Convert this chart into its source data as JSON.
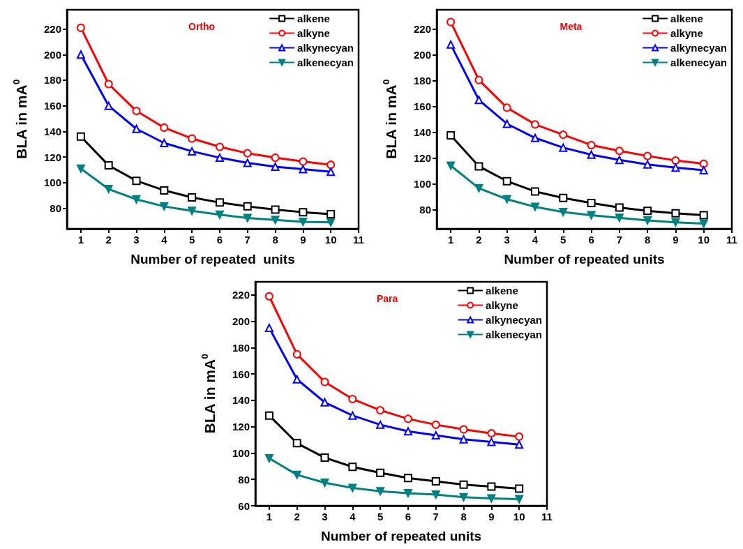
{
  "chart_data": [
    {
      "type": "line",
      "title": "Ortho",
      "xlabel": "Number of repeated  units",
      "ylabel": "BLA in mA$^{0}$",
      "x": [
        1,
        2,
        3,
        4,
        5,
        6,
        7,
        8,
        9,
        10
      ],
      "xlim": [
        0.5,
        11
      ],
      "xticks": [
        1,
        2,
        3,
        4,
        5,
        6,
        7,
        8,
        9,
        10,
        11
      ],
      "ylim": [
        64,
        235
      ],
      "yticks": [
        80,
        100,
        120,
        140,
        160,
        180,
        200,
        220
      ],
      "grid": false,
      "legend": "top right",
      "line_style": "solid",
      "series": [
        {
          "name": "alkene",
          "color": "#000000",
          "marker": "square",
          "values": [
            136,
            113.5,
            101.5,
            94,
            88.5,
            84.5,
            81.5,
            79,
            77,
            75.5
          ]
        },
        {
          "name": "alkyne",
          "color": "#ff0000",
          "marker": "circle",
          "values": [
            221,
            177,
            156,
            143,
            134.5,
            128,
            123,
            119.5,
            116.5,
            114
          ]
        },
        {
          "name": "alkynecyan",
          "color": "#0000ff",
          "marker": "triangle",
          "values": [
            200,
            160,
            142,
            131,
            124.5,
            119.5,
            115.5,
            112.5,
            110.5,
            108.5
          ]
        },
        {
          "name": "alkenecyan",
          "color": "#008080",
          "marker": "triangle-down",
          "values": [
            111,
            95,
            87,
            81.5,
            78,
            75,
            72.5,
            71,
            69.5,
            69
          ]
        }
      ]
    },
    {
      "type": "line",
      "title": "Meta",
      "xlabel": "Number of repeated units",
      "ylabel": "BLA in mA$^{0}$",
      "x": [
        1,
        2,
        3,
        4,
        5,
        6,
        7,
        8,
        9,
        10
      ],
      "xlim": [
        0.5,
        11
      ],
      "xticks": [
        1,
        2,
        3,
        4,
        5,
        6,
        7,
        8,
        9,
        10,
        11
      ],
      "ylim": [
        65,
        235
      ],
      "yticks": [
        80,
        100,
        120,
        140,
        160,
        180,
        200,
        220
      ],
      "grid": false,
      "legend": "top right",
      "line_style": "solid",
      "series": [
        {
          "name": "alkene",
          "color": "#000000",
          "marker": "square",
          "values": [
            137.5,
            113.5,
            102,
            94,
            89,
            85,
            81.5,
            79,
            77,
            75.5
          ]
        },
        {
          "name": "alkyne",
          "color": "#ff0000",
          "marker": "circle",
          "values": [
            225.5,
            180.5,
            159,
            146,
            138,
            130,
            125.5,
            121.5,
            118,
            115.5
          ]
        },
        {
          "name": "alkynecyan",
          "color": "#0000ff",
          "marker": "triangle",
          "values": [
            208,
            165,
            146.5,
            135.5,
            128,
            122.5,
            118.5,
            115,
            112.5,
            110.5
          ]
        },
        {
          "name": "alkenecyan",
          "color": "#008080",
          "marker": "triangle-down",
          "values": [
            114,
            96.5,
            88,
            82,
            78,
            75.5,
            73.5,
            71.5,
            70,
            69
          ]
        }
      ]
    },
    {
      "type": "line",
      "title": "Para",
      "xlabel": "Number of repeated units",
      "ylabel": "BLA in mA$^{0}$",
      "x": [
        1,
        2,
        3,
        4,
        5,
        6,
        7,
        8,
        9,
        10
      ],
      "xlim": [
        0.5,
        11
      ],
      "xticks": [
        1,
        2,
        3,
        4,
        5,
        6,
        7,
        8,
        9,
        10,
        11
      ],
      "ylim": [
        60,
        230
      ],
      "yticks": [
        60,
        80,
        100,
        120,
        140,
        160,
        180,
        200,
        220
      ],
      "grid": false,
      "legend": "top right",
      "line_style": "solid",
      "series": [
        {
          "name": "alkene",
          "color": "#000000",
          "marker": "square",
          "values": [
            128.5,
            107.5,
            96.5,
            89.5,
            85,
            81,
            78.5,
            76,
            74.5,
            73
          ]
        },
        {
          "name": "alkyne",
          "color": "#ff0000",
          "marker": "circle",
          "values": [
            219,
            175,
            154,
            141,
            132.5,
            126,
            121.5,
            118,
            115,
            112.5
          ]
        },
        {
          "name": "alkynecyan",
          "color": "#0000ff",
          "marker": "triangle",
          "values": [
            195,
            156,
            138.5,
            128.5,
            121.5,
            116.5,
            113.5,
            110.5,
            108.5,
            106.5
          ]
        },
        {
          "name": "alkenecyan",
          "color": "#008080",
          "marker": "triangle-down",
          "values": [
            96,
            83.5,
            77.5,
            73.5,
            71,
            69.5,
            68.5,
            66.5,
            65.5,
            65
          ]
        }
      ]
    }
  ]
}
